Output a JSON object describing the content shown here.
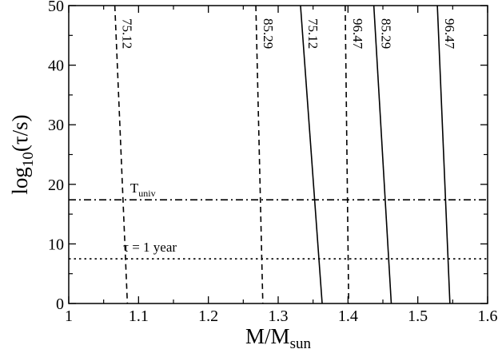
{
  "chart_data": {
    "type": "line",
    "title": "",
    "xlabel": {
      "main": "M/M",
      "sub": "sun"
    },
    "ylabel": {
      "pre": "log",
      "sub": "10",
      "post": "(τ/s)"
    },
    "xlim": [
      1.0,
      1.6
    ],
    "ylim": [
      0,
      50
    ],
    "xticks": [
      1.0,
      1.1,
      1.2,
      1.3,
      1.4,
      1.5,
      1.6
    ],
    "xtick_labels": [
      "1",
      "1.1",
      "1.2",
      "1.3",
      "1.4",
      "1.5",
      "1.6"
    ],
    "yticks": [
      0,
      10,
      20,
      30,
      40,
      50
    ],
    "ytick_labels": [
      "0",
      "10",
      "20",
      "30",
      "40",
      "50"
    ],
    "grid": false,
    "series": [
      {
        "name": "75.12",
        "style": "dashed",
        "x": [
          1.066,
          1.084
        ],
        "y": [
          50,
          0
        ]
      },
      {
        "name": "85.29",
        "style": "dashed",
        "x": [
          1.268,
          1.278
        ],
        "y": [
          50,
          0
        ]
      },
      {
        "name": "96.47",
        "style": "dashed",
        "x": [
          1.396,
          1.401
        ],
        "y": [
          50,
          0
        ]
      },
      {
        "name": "75.12",
        "style": "solid",
        "x": [
          1.332,
          1.363
        ],
        "y": [
          50,
          0
        ]
      },
      {
        "name": "85.29",
        "style": "solid",
        "x": [
          1.437,
          1.462
        ],
        "y": [
          50,
          0
        ]
      },
      {
        "name": "96.47",
        "style": "solid",
        "x": [
          1.528,
          1.546
        ],
        "y": [
          50,
          0
        ]
      }
    ],
    "reference_lines": [
      {
        "style": "dashdot",
        "y": 17.4,
        "label": {
          "main": "T",
          "sub": "univ"
        },
        "label_x": 1.088
      },
      {
        "style": "dotted",
        "y": 7.5,
        "label": {
          "main": "τ = 1 year"
        },
        "label_x": 1.078
      }
    ]
  }
}
